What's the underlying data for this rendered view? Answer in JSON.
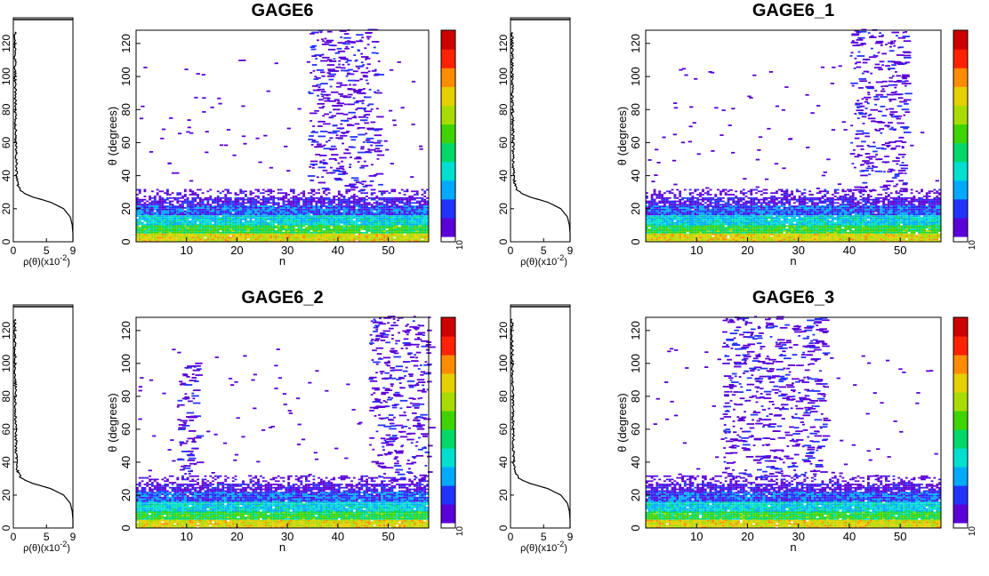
{
  "colors": {
    "frame": "#000000",
    "profile_line": "#000000",
    "colorscale": [
      "#5a00d8",
      "#2233ff",
      "#00aaff",
      "#00dfd0",
      "#00d86a",
      "#3fd400",
      "#a8dc00",
      "#e6d000",
      "#ff8c00",
      "#ff2200",
      "#cc0000"
    ]
  },
  "chart_data": [
    {
      "type": "line",
      "orientation": "vertical-profile",
      "x": [
        0,
        9
      ],
      "y": [
        0,
        128
      ],
      "xticks": [
        "0",
        "5",
        "9"
      ],
      "xlabel": "ρ(θ)(x10",
      "xlabel_exp": "-2",
      "xlabel_close": ")",
      "yticks": [
        "0",
        "20",
        "40",
        "60",
        "80",
        "100",
        "120"
      ],
      "ylim": [
        0,
        128
      ],
      "theta": [
        0,
        5,
        10,
        15,
        20,
        24,
        27,
        29,
        31,
        33,
        36,
        40,
        45,
        55,
        70,
        90,
        110,
        127
      ],
      "rho": [
        9.0,
        9.0,
        8.9,
        8.6,
        7.6,
        5.6,
        3.0,
        1.8,
        1.1,
        0.75,
        0.6,
        0.5,
        0.45,
        0.4,
        0.35,
        0.3,
        0.25,
        0.25
      ]
    },
    {
      "type": "heatmap",
      "title": "GAGE6",
      "xlabel": "n",
      "ylabel": "θ (degrees)",
      "xlim": [
        0,
        58
      ],
      "ylim": [
        0,
        128
      ],
      "xticks": [
        "10",
        "20",
        "30",
        "40",
        "50"
      ],
      "yticks": [
        "0",
        "20",
        "40",
        "60",
        "80",
        "100",
        "120"
      ],
      "colorbar_label": "10",
      "hotspots": [
        {
          "n_from": 34,
          "n_to": 48,
          "theta_from": 30,
          "theta_to": 128
        }
      ]
    },
    {
      "type": "line",
      "orientation": "vertical-profile",
      "x": [
        0,
        9
      ],
      "y": [
        0,
        128
      ],
      "xticks": [
        "0",
        "5",
        "9"
      ],
      "xlabel": "ρ(θ)(x10",
      "xlabel_exp": "-2",
      "xlabel_close": ")",
      "yticks": [
        "0",
        "20",
        "40",
        "60",
        "80",
        "100",
        "120"
      ],
      "ylim": [
        0,
        128
      ],
      "theta": [
        0,
        5,
        10,
        15,
        20,
        24,
        27,
        29,
        31,
        33,
        36,
        40,
        45,
        55,
        70,
        90,
        110,
        127
      ],
      "rho": [
        9.0,
        9.0,
        8.9,
        8.6,
        7.6,
        5.6,
        3.0,
        1.8,
        1.1,
        0.75,
        0.6,
        0.5,
        0.45,
        0.4,
        0.35,
        0.3,
        0.25,
        0.25
      ]
    },
    {
      "type": "heatmap",
      "title": "GAGE6_1",
      "xlabel": "n",
      "ylabel": "θ (degrees)",
      "xlim": [
        0,
        58
      ],
      "ylim": [
        0,
        128
      ],
      "xticks": [
        "10",
        "20",
        "30",
        "40",
        "50"
      ],
      "yticks": [
        "0",
        "20",
        "40",
        "60",
        "80",
        "100",
        "120"
      ],
      "colorbar_label": "10",
      "hotspots": [
        {
          "n_from": 40,
          "n_to": 51,
          "theta_from": 28,
          "theta_to": 128
        }
      ]
    },
    {
      "type": "line",
      "orientation": "vertical-profile",
      "x": [
        0,
        9
      ],
      "y": [
        0,
        128
      ],
      "xticks": [
        "0",
        "5",
        "9"
      ],
      "xlabel": "ρ(θ)(x10",
      "xlabel_exp": "-2",
      "xlabel_close": ")",
      "yticks": [
        "0",
        "20",
        "40",
        "60",
        "80",
        "100",
        "120"
      ],
      "ylim": [
        0,
        128
      ],
      "theta": [
        0,
        5,
        10,
        15,
        20,
        24,
        27,
        29,
        31,
        33,
        36,
        40,
        45,
        55,
        70,
        90,
        110,
        127
      ],
      "rho": [
        9.0,
        9.0,
        8.9,
        8.6,
        7.6,
        5.6,
        3.0,
        1.8,
        1.1,
        0.75,
        0.6,
        0.5,
        0.45,
        0.4,
        0.35,
        0.3,
        0.25,
        0.25
      ]
    },
    {
      "type": "heatmap",
      "title": "GAGE6_2",
      "xlabel": "n",
      "ylabel": "θ (degrees)",
      "xlim": [
        0,
        58
      ],
      "ylim": [
        0,
        128
      ],
      "xticks": [
        "10",
        "20",
        "30",
        "40",
        "50"
      ],
      "yticks": [
        "0",
        "20",
        "40",
        "60",
        "80",
        "100",
        "120"
      ],
      "colorbar_label": "10",
      "hotspots": [
        {
          "n_from": 8,
          "n_to": 12,
          "theta_from": 30,
          "theta_to": 100
        },
        {
          "n_from": 46,
          "n_to": 58,
          "theta_from": 28,
          "theta_to": 128
        }
      ]
    },
    {
      "type": "line",
      "orientation": "vertical-profile",
      "x": [
        0,
        9
      ],
      "y": [
        0,
        128
      ],
      "xticks": [
        "0",
        "5",
        "9"
      ],
      "xlabel": "ρ(θ)(x10",
      "xlabel_exp": "-2",
      "xlabel_close": ")",
      "yticks": [
        "0",
        "20",
        "40",
        "60",
        "80",
        "100",
        "120"
      ],
      "ylim": [
        0,
        128
      ],
      "theta": [
        0,
        5,
        10,
        15,
        20,
        24,
        27,
        29,
        31,
        33,
        36,
        40,
        45,
        55,
        70,
        90,
        110,
        127
      ],
      "rho": [
        9.0,
        9.0,
        8.9,
        8.6,
        7.6,
        5.6,
        3.0,
        1.8,
        1.1,
        0.75,
        0.6,
        0.5,
        0.45,
        0.4,
        0.35,
        0.3,
        0.25,
        0.25
      ]
    },
    {
      "type": "heatmap",
      "title": "GAGE6_3",
      "xlabel": "n",
      "ylabel": "θ (degrees)",
      "xlim": [
        0,
        58
      ],
      "ylim": [
        0,
        128
      ],
      "xticks": [
        "10",
        "20",
        "30",
        "40",
        "50"
      ],
      "yticks": [
        "0",
        "20",
        "40",
        "60",
        "80",
        "100",
        "120"
      ],
      "colorbar_label": "10",
      "hotspots": [
        {
          "n_from": 15,
          "n_to": 35,
          "theta_from": 30,
          "theta_to": 128
        }
      ]
    }
  ]
}
